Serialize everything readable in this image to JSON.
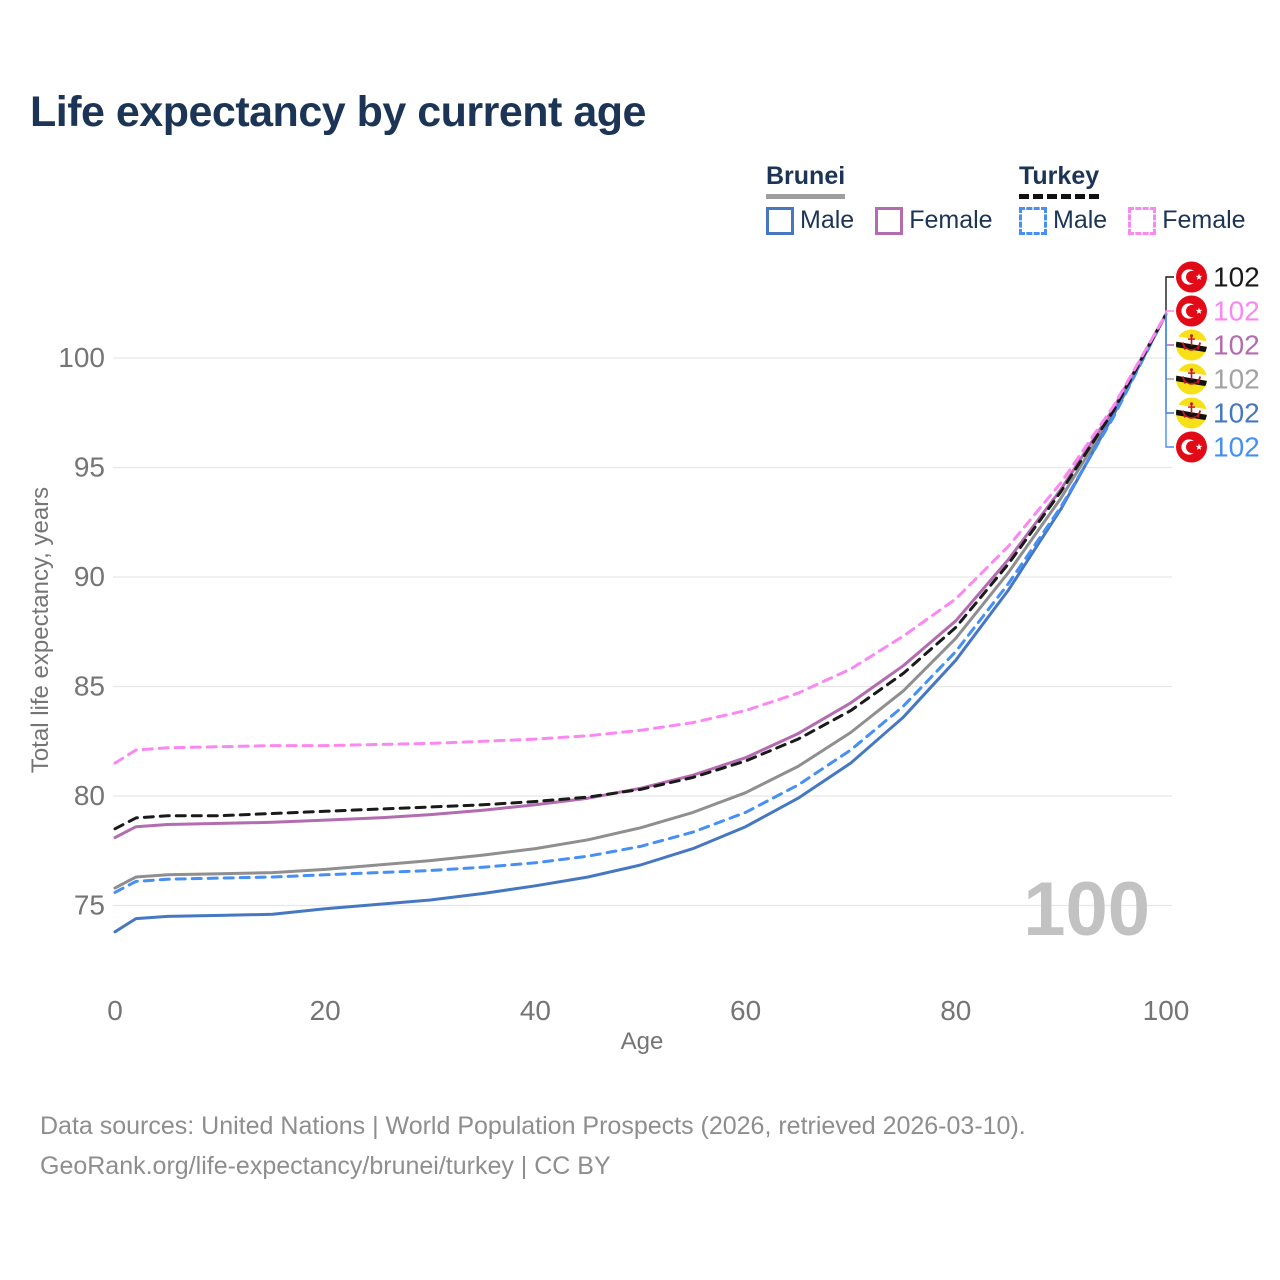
{
  "title": "Life expectancy by current age",
  "legend": {
    "groups": [
      {
        "country": "Brunei",
        "line_style": "solid",
        "items": [
          {
            "label": "Male",
            "series": "brunei-male"
          },
          {
            "label": "Female",
            "series": "brunei-female"
          }
        ]
      },
      {
        "country": "Turkey",
        "line_style": "dashed",
        "items": [
          {
            "label": "Male",
            "series": "turkey-male"
          },
          {
            "label": "Female",
            "series": "turkey-female"
          }
        ]
      }
    ]
  },
  "colors": {
    "title_text": "#1C3455",
    "ticks": "#757575",
    "grid": "#E7E7E7",
    "footer": "#8E8E8E",
    "watermark": "#C2C2C2",
    "background": "#FFFFFF"
  },
  "flags": {
    "turkey_red": "#E30A17",
    "brunei_yellow": "#F7E017",
    "brunei_emblem": "#CF1126",
    "stripe_white": "#FFFFFF",
    "stripe_black": "#111111"
  },
  "chart_data": {
    "type": "line",
    "title": "Life expectancy by current age",
    "xlabel": "Age",
    "ylabel": "Total life expectancy, years",
    "xticks": [
      0,
      20,
      40,
      60,
      80,
      100
    ],
    "yticks": [
      75,
      80,
      85,
      90,
      95,
      100
    ],
    "xlim": [
      0,
      100
    ],
    "ylim": [
      73.5,
      102.5
    ],
    "grid": "horizontal",
    "watermark": "100",
    "x": [
      0,
      2,
      5,
      10,
      15,
      20,
      25,
      30,
      35,
      40,
      45,
      50,
      55,
      60,
      65,
      70,
      75,
      80,
      85,
      90,
      95,
      100
    ],
    "series": [
      {
        "id": "brunei-both",
        "name": "Brunei",
        "country": "Brunei",
        "sex": "both",
        "style": "solid",
        "color": "#8F8F8F",
        "values": [
          75.8,
          76.3,
          76.4,
          76.45,
          76.5,
          76.65,
          76.85,
          77.05,
          77.3,
          77.6,
          78.0,
          78.55,
          79.25,
          80.15,
          81.35,
          82.9,
          84.8,
          87.2,
          90.2,
          93.6,
          97.5,
          102
        ]
      },
      {
        "id": "brunei-male",
        "name": "Brunei Male",
        "country": "Brunei",
        "sex": "male",
        "style": "solid",
        "color": "#4678C2",
        "values": [
          73.8,
          74.4,
          74.5,
          74.55,
          74.6,
          74.85,
          75.05,
          75.25,
          75.55,
          75.9,
          76.3,
          76.85,
          77.6,
          78.6,
          79.9,
          81.5,
          83.6,
          86.2,
          89.4,
          93.1,
          97.4,
          102
        ]
      },
      {
        "id": "turkey-male",
        "name": "Turkey Male",
        "country": "Turkey",
        "sex": "male",
        "style": "dashed",
        "color": "#458FF5",
        "values": [
          75.6,
          76.1,
          76.2,
          76.25,
          76.3,
          76.4,
          76.5,
          76.6,
          76.75,
          76.95,
          77.25,
          77.7,
          78.35,
          79.25,
          80.5,
          82.1,
          84.1,
          86.6,
          89.7,
          93.2,
          97.3,
          102
        ]
      },
      {
        "id": "brunei-female",
        "name": "Brunei Female",
        "country": "Brunei",
        "sex": "female",
        "style": "solid",
        "color": "#B36CB0",
        "values": [
          78.1,
          78.6,
          78.7,
          78.75,
          78.8,
          78.9,
          79.0,
          79.15,
          79.35,
          79.6,
          79.9,
          80.35,
          80.95,
          81.75,
          82.85,
          84.25,
          85.95,
          88.0,
          90.8,
          94.0,
          97.7,
          102
        ]
      },
      {
        "id": "turkey-both",
        "name": "Turkey",
        "country": "Turkey",
        "sex": "both",
        "style": "dashed",
        "color": "#1A1A1A",
        "values": [
          78.5,
          79.0,
          79.1,
          79.1,
          79.2,
          79.3,
          79.4,
          79.5,
          79.6,
          79.75,
          79.95,
          80.3,
          80.85,
          81.6,
          82.6,
          83.9,
          85.6,
          87.7,
          90.6,
          93.9,
          97.6,
          102
        ]
      },
      {
        "id": "turkey-female",
        "name": "Turkey Female",
        "country": "Turkey",
        "sex": "female",
        "style": "dashed",
        "color": "#FB87F3",
        "values": [
          81.5,
          82.1,
          82.2,
          82.25,
          82.3,
          82.3,
          82.35,
          82.4,
          82.5,
          82.6,
          82.75,
          83.0,
          83.35,
          83.9,
          84.7,
          85.8,
          87.3,
          89.0,
          91.4,
          94.3,
          97.8,
          102
        ]
      }
    ],
    "end_labels": [
      {
        "flag": "turkey",
        "series": "turkey-both",
        "value": "102",
        "color": "#1A1A1A"
      },
      {
        "flag": "turkey",
        "series": "turkey-female",
        "value": "102",
        "color": "#FB87F3"
      },
      {
        "flag": "brunei",
        "series": "brunei-female",
        "value": "102",
        "color": "#B36CB0"
      },
      {
        "flag": "brunei",
        "series": "brunei-both",
        "value": "102",
        "color": "#A3A3A3"
      },
      {
        "flag": "brunei",
        "series": "brunei-male",
        "value": "102",
        "color": "#4678C2"
      },
      {
        "flag": "turkey",
        "series": "turkey-male",
        "value": "102",
        "color": "#458FF5"
      }
    ]
  },
  "footer": {
    "line1": "Data sources: United Nations | World Population Prospects (2026, retrieved 2026-03-10).",
    "line2": "GeoRank.org/life-expectancy/brunei/turkey | CC BY"
  }
}
